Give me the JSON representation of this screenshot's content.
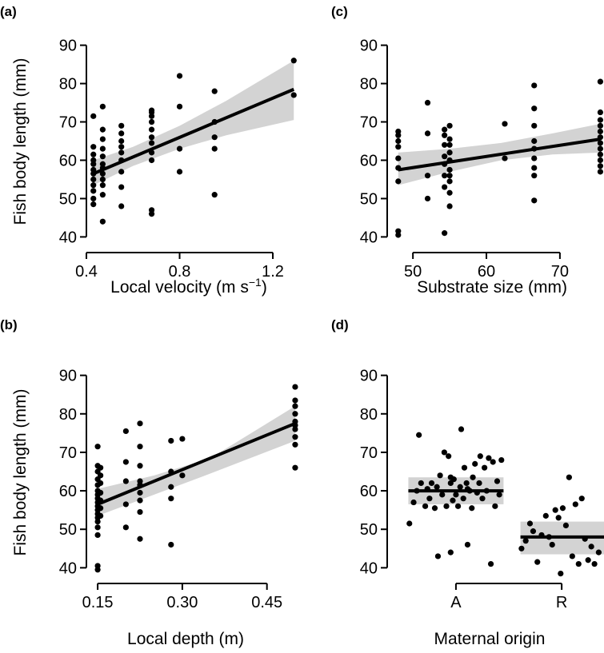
{
  "chart_data": [
    {
      "type": "scatter",
      "panel": "(a)",
      "xlabel_prefix": "Local velocity (m s",
      "xlabel_sup": "−1",
      "xlabel_suffix": ")",
      "ylabel": "Fish body length (mm)",
      "xlim": [
        0.4,
        1.32
      ],
      "ylim": [
        38,
        92
      ],
      "xticks": [
        0.4,
        0.8,
        1.2
      ],
      "xticklabels": [
        "0.4",
        "0.8",
        "1.2"
      ],
      "yticks": [
        40,
        50,
        60,
        70,
        80,
        90
      ],
      "yticklabels": [
        "40",
        "50",
        "60",
        "70",
        "80",
        "90"
      ],
      "points": [
        {
          "x": 0.43,
          "y": [
            48.5,
            50,
            52,
            53.5,
            55,
            56.5,
            57.5,
            59,
            60,
            61.5,
            63.5,
            71.5
          ]
        },
        {
          "x": 0.47,
          "y": [
            44,
            51,
            53.5,
            55,
            56.5,
            58,
            59,
            61,
            63,
            65.5,
            68,
            74
          ]
        },
        {
          "x": 0.55,
          "y": [
            48,
            53,
            57,
            60,
            62,
            63.5,
            65,
            67,
            69
          ]
        },
        {
          "x": 0.68,
          "y": [
            46,
            47,
            60,
            62,
            64.5,
            66,
            68,
            70,
            71.5,
            72.5,
            73
          ]
        },
        {
          "x": 0.8,
          "y": [
            57,
            63,
            74,
            82
          ]
        },
        {
          "x": 0.95,
          "y": [
            51,
            63,
            66,
            70,
            78
          ]
        },
        {
          "x": 1.29,
          "y": [
            77,
            86
          ]
        }
      ],
      "fit": {
        "x": [
          0.43,
          1.29
        ],
        "y": [
          56.5,
          78.5
        ]
      },
      "band": {
        "x": [
          0.43,
          0.6,
          0.8,
          1.0,
          1.29
        ],
        "lower": [
          53.5,
          58.5,
          63,
          66.5,
          70.5
        ],
        "upper": [
          60,
          63.5,
          69,
          75.5,
          86
        ]
      }
    },
    {
      "type": "scatter",
      "panel": "(b)",
      "xlabel": "Local depth (m)",
      "ylabel": "Fish body length (mm)",
      "xlim": [
        0.13,
        0.51
      ],
      "ylim": [
        38,
        92
      ],
      "xticks": [
        0.15,
        0.3,
        0.45
      ],
      "xticklabels": [
        "0.15",
        "0.30",
        "0.45"
      ],
      "yticks": [
        40,
        50,
        60,
        70,
        80,
        90
      ],
      "yticklabels": [
        "40",
        "50",
        "60",
        "70",
        "80",
        "90"
      ],
      "points": [
        {
          "x": 0.15,
          "y": [
            39.5,
            40.5,
            48.5,
            50.5,
            52,
            53,
            54,
            55,
            56,
            57,
            58,
            59,
            60,
            61.5,
            63,
            65,
            66.5,
            71.5
          ]
        },
        {
          "x": 0.155,
          "y": [
            53.5,
            55.5,
            57.5,
            59.5,
            62,
            64,
            66
          ]
        },
        {
          "x": 0.2,
          "y": [
            50.5,
            56.5,
            62.5,
            67.5,
            75.5
          ]
        },
        {
          "x": 0.225,
          "y": [
            47.5,
            54.5,
            57.5,
            59.5,
            61.5,
            62.5,
            66.5,
            71.5,
            77.5
          ]
        },
        {
          "x": 0.28,
          "y": [
            46,
            58,
            61,
            65,
            73
          ]
        },
        {
          "x": 0.3,
          "y": [
            64,
            73.5
          ]
        },
        {
          "x": 0.5,
          "y": [
            66,
            72,
            74,
            76,
            77,
            78,
            80,
            82,
            83.5,
            87
          ]
        }
      ],
      "fit": {
        "x": [
          0.15,
          0.5
        ],
        "y": [
          56.5,
          77.5
        ]
      },
      "band": {
        "x": [
          0.15,
          0.25,
          0.35,
          0.5
        ],
        "lower": [
          53.5,
          59,
          64.5,
          73
        ],
        "upper": [
          60.5,
          64,
          68.5,
          82
        ]
      }
    },
    {
      "type": "scatter",
      "panel": "(c)",
      "xlabel": "Substrate size (mm)",
      "ylabel": "",
      "xlim": [
        46.5,
        76
      ],
      "ylim": [
        38,
        92
      ],
      "xticks": [
        50,
        60,
        70
      ],
      "xticklabels": [
        "50",
        "60",
        "70"
      ],
      "yticks": [
        40,
        50,
        60,
        70,
        80,
        90
      ],
      "yticklabels": [
        "40",
        "50",
        "60",
        "70",
        "80",
        "90"
      ],
      "points": [
        {
          "x": 48,
          "y": [
            40.5,
            41.5,
            54.5,
            58,
            60.5,
            63.5,
            65,
            66.5,
            67.5
          ]
        },
        {
          "x": 52,
          "y": [
            50,
            56,
            67,
            75
          ]
        },
        {
          "x": 54.3,
          "y": [
            41,
            53,
            56,
            59,
            61,
            64,
            66.5,
            68
          ]
        },
        {
          "x": 55,
          "y": [
            48,
            51.5,
            54.5,
            56,
            57.5,
            60,
            62,
            64,
            65.5,
            69
          ]
        },
        {
          "x": 62.5,
          "y": [
            60.5,
            69.5
          ]
        },
        {
          "x": 66.5,
          "y": [
            49.5,
            56,
            58,
            60.5,
            63,
            65,
            69,
            73.5,
            79.5
          ]
        },
        {
          "x": 75.5,
          "y": [
            57,
            58.5,
            60,
            61.5,
            63,
            64.5,
            66,
            67.5,
            69,
            70.5,
            72.5,
            80.5
          ]
        }
      ],
      "fit": {
        "x": [
          48,
          75.5
        ],
        "y": [
          57.5,
          65.5
        ]
      },
      "band": {
        "x": [
          48,
          55,
          62,
          69,
          75.5
        ],
        "lower": [
          53.5,
          57,
          60,
          61.5,
          62
        ],
        "upper": [
          62,
          63,
          64.5,
          67,
          69.5
        ]
      }
    },
    {
      "type": "scatter",
      "panel": "(d)",
      "xlabel": "Maternal origin",
      "ylabel": "",
      "categories": [
        "A",
        "R"
      ],
      "xlim": [
        0.5,
        2.55
      ],
      "ylim": [
        38,
        92
      ],
      "yticks": [
        40,
        50,
        60,
        70,
        80,
        90
      ],
      "yticklabels": [
        "40",
        "50",
        "60",
        "70",
        "80",
        "90"
      ],
      "points_A": [
        {
          "x": 0.71,
          "y": 51.5
        },
        {
          "x": 0.75,
          "y": 57
        },
        {
          "x": 0.78,
          "y": 60
        },
        {
          "x": 0.8,
          "y": 74.5
        },
        {
          "x": 0.82,
          "y": 62
        },
        {
          "x": 0.86,
          "y": 56
        },
        {
          "x": 0.88,
          "y": 60.5
        },
        {
          "x": 0.9,
          "y": 58
        },
        {
          "x": 0.92,
          "y": 62
        },
        {
          "x": 0.95,
          "y": 55.5
        },
        {
          "x": 0.97,
          "y": 61
        },
        {
          "x": 0.98,
          "y": 43
        },
        {
          "x": 1.0,
          "y": 64
        },
        {
          "x": 1.02,
          "y": 59
        },
        {
          "x": 1.04,
          "y": 70
        },
        {
          "x": 1.06,
          "y": 56
        },
        {
          "x": 1.08,
          "y": 69
        },
        {
          "x": 1.1,
          "y": 62
        },
        {
          "x": 1.1,
          "y": 44
        },
        {
          "x": 1.12,
          "y": 57.5
        },
        {
          "x": 1.13,
          "y": 63
        },
        {
          "x": 1.15,
          "y": 59
        },
        {
          "x": 1.17,
          "y": 56
        },
        {
          "x": 1.19,
          "y": 61
        },
        {
          "x": 1.2,
          "y": 76
        },
        {
          "x": 1.22,
          "y": 58
        },
        {
          "x": 1.23,
          "y": 66
        },
        {
          "x": 1.25,
          "y": 62
        },
        {
          "x": 1.26,
          "y": 46
        },
        {
          "x": 1.28,
          "y": 60
        },
        {
          "x": 1.3,
          "y": 55.5
        },
        {
          "x": 1.31,
          "y": 63.5
        },
        {
          "x": 1.33,
          "y": 67
        },
        {
          "x": 1.35,
          "y": 59.5
        },
        {
          "x": 1.37,
          "y": 62
        },
        {
          "x": 1.38,
          "y": 69
        },
        {
          "x": 1.4,
          "y": 58
        },
        {
          "x": 1.42,
          "y": 66
        },
        {
          "x": 1.44,
          "y": 60
        },
        {
          "x": 1.46,
          "y": 68.5
        },
        {
          "x": 1.48,
          "y": 41
        },
        {
          "x": 1.5,
          "y": 67.5
        },
        {
          "x": 1.52,
          "y": 56
        },
        {
          "x": 1.54,
          "y": 62.5
        },
        {
          "x": 1.56,
          "y": 59
        },
        {
          "x": 1.58,
          "y": 68
        },
        {
          "x": 1.1,
          "y": 63.5
        },
        {
          "x": 1.26,
          "y": 60.5
        }
      ],
      "points_R": [
        {
          "x": 1.77,
          "y": 45
        },
        {
          "x": 1.81,
          "y": 47
        },
        {
          "x": 1.85,
          "y": 51.5
        },
        {
          "x": 1.88,
          "y": 49.5
        },
        {
          "x": 1.92,
          "y": 41.5
        },
        {
          "x": 1.96,
          "y": 48.5
        },
        {
          "x": 2.0,
          "y": 53.5
        },
        {
          "x": 2.03,
          "y": 48
        },
        {
          "x": 2.06,
          "y": 46
        },
        {
          "x": 2.09,
          "y": 55
        },
        {
          "x": 2.12,
          "y": 53
        },
        {
          "x": 2.14,
          "y": 38.5
        },
        {
          "x": 2.16,
          "y": 55.5
        },
        {
          "x": 2.19,
          "y": 51
        },
        {
          "x": 2.22,
          "y": 63.5
        },
        {
          "x": 2.25,
          "y": 43
        },
        {
          "x": 2.28,
          "y": 56.5
        },
        {
          "x": 2.31,
          "y": 41
        },
        {
          "x": 2.34,
          "y": 58
        },
        {
          "x": 2.37,
          "y": 47.5
        },
        {
          "x": 2.4,
          "y": 42
        },
        {
          "x": 2.43,
          "y": 45.5
        },
        {
          "x": 2.46,
          "y": 41
        },
        {
          "x": 2.5,
          "y": 44
        }
      ],
      "means": [
        {
          "category": "A",
          "x": [
            0.7,
            1.6
          ],
          "mean": 60,
          "lower": 56.5,
          "upper": 63.5
        },
        {
          "category": "R",
          "x": [
            1.76,
            2.55
          ],
          "mean": 48,
          "lower": 43.5,
          "upper": 52
        }
      ]
    }
  ]
}
